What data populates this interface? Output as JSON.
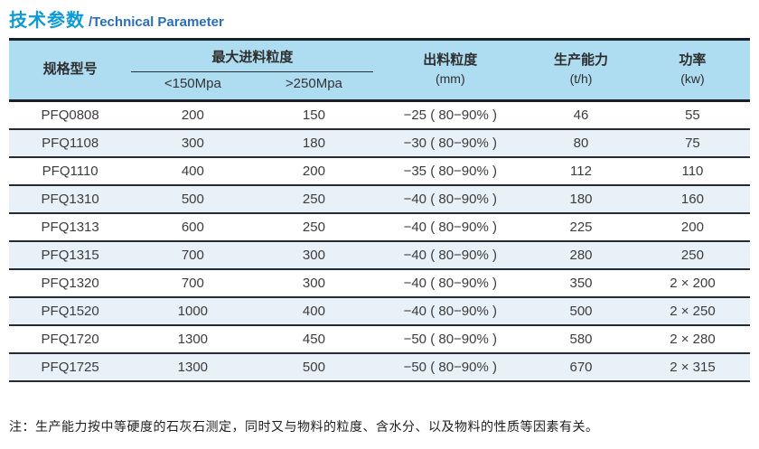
{
  "title": {
    "cn": "技术参数",
    "en": "/Technical Parameter"
  },
  "colors": {
    "title_cn": "#0d9ad6",
    "title_en": "#2a6db8",
    "header_bg": "#aeddf2",
    "stripe_bg": "#e8f1f8",
    "line_dark": "#1b1f29"
  },
  "table": {
    "columns": {
      "model": "规格型号",
      "max_feed_group": "最大进料粒度",
      "max_feed_sub": [
        "<150Mpa",
        ">250Mpa"
      ],
      "output_size": "出料粒度",
      "output_size_unit": "(mm)",
      "capacity": "生产能力",
      "capacity_unit": "(t/h)",
      "power": "功率",
      "power_unit": "(kw)"
    },
    "rows": [
      [
        "PFQ0808",
        "200",
        "150",
        "−25 ( 80−90% )",
        "46",
        "55"
      ],
      [
        "PFQ1108",
        "300",
        "180",
        "−30 ( 80−90% )",
        "80",
        "75"
      ],
      [
        "PFQ1110",
        "400",
        "200",
        "−35 ( 80−90% )",
        "112",
        "110"
      ],
      [
        "PFQ1310",
        "500",
        "250",
        "−40 ( 80−90% )",
        "180",
        "160"
      ],
      [
        "PFQ1313",
        "600",
        "250",
        "−40 ( 80−90% )",
        "225",
        "200"
      ],
      [
        "PFQ1315",
        "700",
        "300",
        "−40 ( 80−90% )",
        "280",
        "250"
      ],
      [
        "PFQ1320",
        "700",
        "300",
        "−40 ( 80−90% )",
        "350",
        "2 × 200"
      ],
      [
        "PFQ1520",
        "1000",
        "400",
        "−40 ( 80−90% )",
        "500",
        "2 × 250"
      ],
      [
        "PFQ1720",
        "1300",
        "450",
        "−50 ( 80−90% )",
        "580",
        "2 × 280"
      ],
      [
        "PFQ1725",
        "1300",
        "500",
        "−50 ( 80−90% )",
        "670",
        "2 × 315"
      ]
    ]
  },
  "note": "注：生产能力按中等硬度的石灰石测定，同时又与物料的粒度、含水分、以及物料的性质等因素有关。"
}
